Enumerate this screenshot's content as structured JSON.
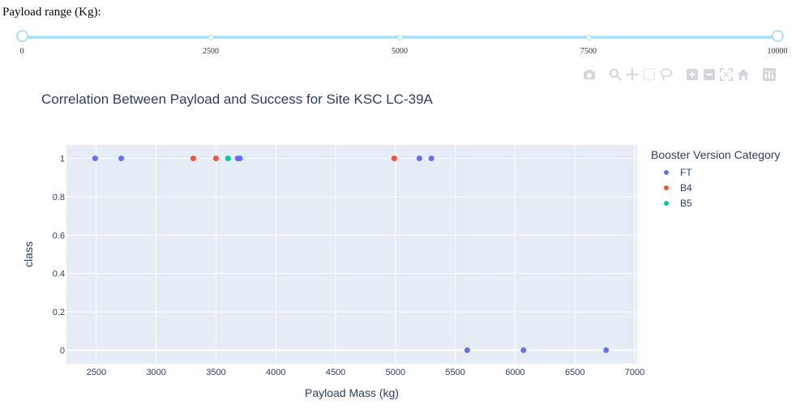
{
  "slider": {
    "label": "Payload range (Kg):",
    "marks": [
      "0",
      "2500",
      "5000",
      "7500",
      "10000"
    ],
    "min": 0,
    "max": 10000,
    "selected_range": [
      0,
      10000
    ]
  },
  "modebar": {
    "icons": [
      "camera-icon",
      "zoom-icon",
      "pan-icon",
      "box-select-icon",
      "lasso-icon",
      "zoom-in-icon",
      "zoom-out-icon",
      "autoscale-icon",
      "home-icon",
      "plotly-logo-icon"
    ]
  },
  "chart_data": {
    "type": "scatter",
    "title": "Correlation Between Payload and Success for Site KSC LC-39A",
    "xlabel": "Payload Mass (kg)",
    "ylabel": "class",
    "xlim": [
      2250,
      7020
    ],
    "ylim": [
      -0.07,
      1.07
    ],
    "x_ticks": [
      "2500",
      "3000",
      "3500",
      "4000",
      "4500",
      "5000",
      "5500",
      "6000",
      "6500",
      "7000"
    ],
    "y_ticks": [
      "0",
      "0.2",
      "0.4",
      "0.6",
      "0.8",
      "1"
    ],
    "grid": true,
    "legend_title": "Booster Version Category",
    "legend_position": "right",
    "colors": {
      "FT": "#636efa",
      "B4": "#ef553b",
      "B5": "#00cc96",
      "plot_bg": "#e5ecf6"
    },
    "series": [
      {
        "name": "FT",
        "x": [
          2490,
          2708,
          3681,
          3700,
          5200,
          5300,
          5600,
          6070,
          6761
        ],
        "y": [
          1,
          1,
          1,
          1,
          1,
          1,
          0,
          0,
          0
        ]
      },
      {
        "name": "B4",
        "x": [
          3310,
          3500,
          4990
        ],
        "y": [
          1,
          1,
          1
        ]
      },
      {
        "name": "B5",
        "x": [
          3600
        ],
        "y": [
          1
        ]
      }
    ]
  }
}
